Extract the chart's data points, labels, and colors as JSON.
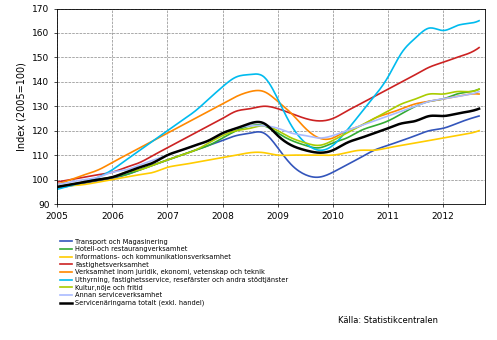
{
  "ylabel": "Index (2005=100)",
  "xlim": [
    2005.0,
    2012.75
  ],
  "ylim": [
    90,
    170
  ],
  "yticks": [
    90,
    100,
    110,
    120,
    130,
    140,
    150,
    160,
    170
  ],
  "xtick_labels": [
    "2005",
    "2006",
    "2007",
    "2008",
    "2009",
    "2010",
    "2011",
    "2012"
  ],
  "xtick_positions": [
    2005,
    2006,
    2007,
    2008,
    2009,
    2010,
    2011,
    2012
  ],
  "source_text": "Källa: Statistikcentralen",
  "legend_entries": [
    {
      "label": "Transport och Magasinering",
      "color": "#3355bb",
      "lw": 1.2
    },
    {
      "label": "Hotell-och restaurangverksamhet",
      "color": "#33aa33",
      "lw": 1.2
    },
    {
      "label": "Informations- och kommunikationsverksamhet",
      "color": "#ffcc00",
      "lw": 1.2
    },
    {
      "label": "Fastighetsverksamhet",
      "color": "#cc2222",
      "lw": 1.2
    },
    {
      "label": "Verksamhet inom juridik, ekonomi, vetenskap och teknik",
      "color": "#ff8800",
      "lw": 1.2
    },
    {
      "label": "Uthyrning, fastighetsservice, resefärster och andra stödtjänster",
      "color": "#00bbee",
      "lw": 1.2
    },
    {
      "label": "Kultur,nöje och fritid",
      "color": "#aacc00",
      "lw": 1.2
    },
    {
      "label": "Annan serviceverksamhet",
      "color": "#aabbff",
      "lw": 1.2
    },
    {
      "label": "Servicenäringarna totalt (exkl. handel)",
      "color": "#000000",
      "lw": 1.8
    }
  ],
  "series": {
    "transport": {
      "x": [
        2005.0,
        2005.25,
        2005.5,
        2005.75,
        2006.0,
        2006.25,
        2006.5,
        2006.75,
        2007.0,
        2007.25,
        2007.5,
        2007.75,
        2008.0,
        2008.25,
        2008.5,
        2008.75,
        2009.0,
        2009.25,
        2009.5,
        2009.75,
        2010.0,
        2010.25,
        2010.5,
        2010.75,
        2011.0,
        2011.25,
        2011.5,
        2011.75,
        2012.0,
        2012.25,
        2012.5,
        2012.65
      ],
      "y": [
        96.5,
        97.5,
        98.5,
        99.5,
        100.5,
        102,
        104,
        106,
        108,
        110,
        112,
        114,
        116,
        118,
        119,
        119,
        113,
        106,
        102,
        101,
        103,
        106,
        109,
        112,
        114,
        116,
        118,
        120,
        121,
        123,
        125,
        126
      ]
    },
    "hotell": {
      "x": [
        2005.0,
        2005.25,
        2005.5,
        2005.75,
        2006.0,
        2006.25,
        2006.5,
        2006.75,
        2007.0,
        2007.25,
        2007.5,
        2007.75,
        2008.0,
        2008.25,
        2008.5,
        2008.75,
        2009.0,
        2009.25,
        2009.5,
        2009.75,
        2010.0,
        2010.25,
        2010.5,
        2010.75,
        2011.0,
        2011.25,
        2011.5,
        2011.75,
        2012.0,
        2012.25,
        2012.5,
        2012.65
      ],
      "y": [
        97,
        98,
        99,
        100,
        101,
        102,
        104,
        106,
        108,
        110,
        112,
        114,
        117,
        120,
        122,
        122,
        119,
        116,
        114,
        113,
        115,
        117,
        120,
        122,
        124,
        127,
        130,
        132,
        133,
        135,
        136,
        137
      ]
    },
    "it": {
      "x": [
        2005.0,
        2005.25,
        2005.5,
        2005.75,
        2006.0,
        2006.25,
        2006.5,
        2006.75,
        2007.0,
        2007.25,
        2007.5,
        2007.75,
        2008.0,
        2008.25,
        2008.5,
        2008.75,
        2009.0,
        2009.25,
        2009.5,
        2009.75,
        2010.0,
        2010.25,
        2010.5,
        2010.75,
        2011.0,
        2011.25,
        2011.5,
        2011.75,
        2012.0,
        2012.25,
        2012.5,
        2012.65
      ],
      "y": [
        97,
        97.5,
        98,
        99,
        100,
        101,
        102,
        103,
        105,
        106,
        107,
        108,
        109,
        110,
        111,
        111,
        110,
        110,
        110,
        110,
        110,
        111,
        112,
        112,
        113,
        114,
        115,
        116,
        117,
        118,
        119,
        120
      ]
    },
    "fastighet": {
      "x": [
        2005.0,
        2005.25,
        2005.5,
        2005.75,
        2006.0,
        2006.25,
        2006.5,
        2006.75,
        2007.0,
        2007.25,
        2007.5,
        2007.75,
        2008.0,
        2008.25,
        2008.5,
        2008.75,
        2009.0,
        2009.25,
        2009.5,
        2009.75,
        2010.0,
        2010.25,
        2010.5,
        2010.75,
        2011.0,
        2011.25,
        2011.5,
        2011.75,
        2012.0,
        2012.25,
        2012.5,
        2012.65
      ],
      "y": [
        99,
        100,
        101,
        102,
        103,
        105,
        107,
        110,
        113,
        116,
        119,
        122,
        125,
        128,
        129,
        130,
        129,
        127,
        125,
        124,
        125,
        128,
        131,
        134,
        137,
        140,
        143,
        146,
        148,
        150,
        152,
        154
      ]
    },
    "juridik": {
      "x": [
        2005.0,
        2005.25,
        2005.5,
        2005.75,
        2006.0,
        2006.25,
        2006.5,
        2006.75,
        2007.0,
        2007.25,
        2007.5,
        2007.75,
        2008.0,
        2008.25,
        2008.5,
        2008.75,
        2009.0,
        2009.25,
        2009.5,
        2009.75,
        2010.0,
        2010.25,
        2010.5,
        2010.75,
        2011.0,
        2011.25,
        2011.5,
        2011.75,
        2012.0,
        2012.25,
        2012.5,
        2012.65
      ],
      "y": [
        98,
        100,
        102,
        104,
        107,
        110,
        113,
        116,
        119,
        122,
        125,
        128,
        131,
        134,
        136,
        136,
        132,
        127,
        121,
        117,
        117,
        120,
        122,
        125,
        127,
        129,
        131,
        132,
        133,
        134,
        135,
        135
      ]
    },
    "uthyrning": {
      "x": [
        2005.0,
        2005.25,
        2005.5,
        2005.75,
        2006.0,
        2006.25,
        2006.5,
        2006.75,
        2007.0,
        2007.25,
        2007.5,
        2007.75,
        2008.0,
        2008.25,
        2008.5,
        2008.75,
        2009.0,
        2009.25,
        2009.5,
        2009.75,
        2010.0,
        2010.25,
        2010.5,
        2010.75,
        2011.0,
        2011.25,
        2011.5,
        2011.75,
        2012.0,
        2012.25,
        2012.5,
        2012.65
      ],
      "y": [
        96,
        97.5,
        99,
        101,
        104,
        108,
        112,
        116,
        120,
        124,
        128,
        133,
        138,
        142,
        143,
        142,
        133,
        122,
        115,
        112,
        114,
        120,
        127,
        134,
        142,
        152,
        158,
        162,
        161,
        163,
        164,
        165
      ]
    },
    "kultur": {
      "x": [
        2005.0,
        2005.25,
        2005.5,
        2005.75,
        2006.0,
        2006.25,
        2006.5,
        2006.75,
        2007.0,
        2007.25,
        2007.5,
        2007.75,
        2008.0,
        2008.25,
        2008.5,
        2008.75,
        2009.0,
        2009.25,
        2009.5,
        2009.75,
        2010.0,
        2010.25,
        2010.5,
        2010.75,
        2011.0,
        2011.25,
        2011.5,
        2011.75,
        2012.0,
        2012.25,
        2012.5,
        2012.65
      ],
      "y": [
        97,
        98,
        99,
        100,
        101,
        103,
        104,
        106,
        108,
        110,
        112,
        115,
        118,
        120,
        121,
        122,
        120,
        117,
        115,
        114,
        116,
        119,
        122,
        125,
        128,
        131,
        133,
        135,
        135,
        136,
        136,
        137
      ]
    },
    "annan": {
      "x": [
        2005.0,
        2005.25,
        2005.5,
        2005.75,
        2006.0,
        2006.25,
        2006.5,
        2006.75,
        2007.0,
        2007.25,
        2007.5,
        2007.75,
        2008.0,
        2008.25,
        2008.5,
        2008.75,
        2009.0,
        2009.25,
        2009.5,
        2009.75,
        2010.0,
        2010.25,
        2010.5,
        2010.75,
        2011.0,
        2011.25,
        2011.5,
        2011.75,
        2012.0,
        2012.25,
        2012.5,
        2012.65
      ],
      "y": [
        98,
        99,
        100,
        101,
        103,
        104,
        106,
        108,
        110,
        112,
        114,
        116,
        119,
        121,
        122,
        122,
        121,
        119,
        118,
        117,
        118,
        120,
        122,
        124,
        126,
        128,
        130,
        132,
        133,
        134,
        135,
        136
      ]
    },
    "totalt": {
      "x": [
        2005.0,
        2005.25,
        2005.5,
        2005.75,
        2006.0,
        2006.25,
        2006.5,
        2006.75,
        2007.0,
        2007.25,
        2007.5,
        2007.75,
        2008.0,
        2008.25,
        2008.5,
        2008.75,
        2009.0,
        2009.25,
        2009.5,
        2009.75,
        2010.0,
        2010.25,
        2010.5,
        2010.75,
        2011.0,
        2011.25,
        2011.5,
        2011.75,
        2012.0,
        2012.25,
        2012.5,
        2012.65
      ],
      "y": [
        97,
        98,
        99,
        100,
        101,
        103,
        105,
        107,
        110,
        112,
        114,
        116,
        119,
        121,
        123,
        123,
        118,
        114,
        112,
        111,
        112,
        115,
        117,
        119,
        121,
        123,
        124,
        126,
        126,
        127,
        128,
        129
      ]
    }
  }
}
